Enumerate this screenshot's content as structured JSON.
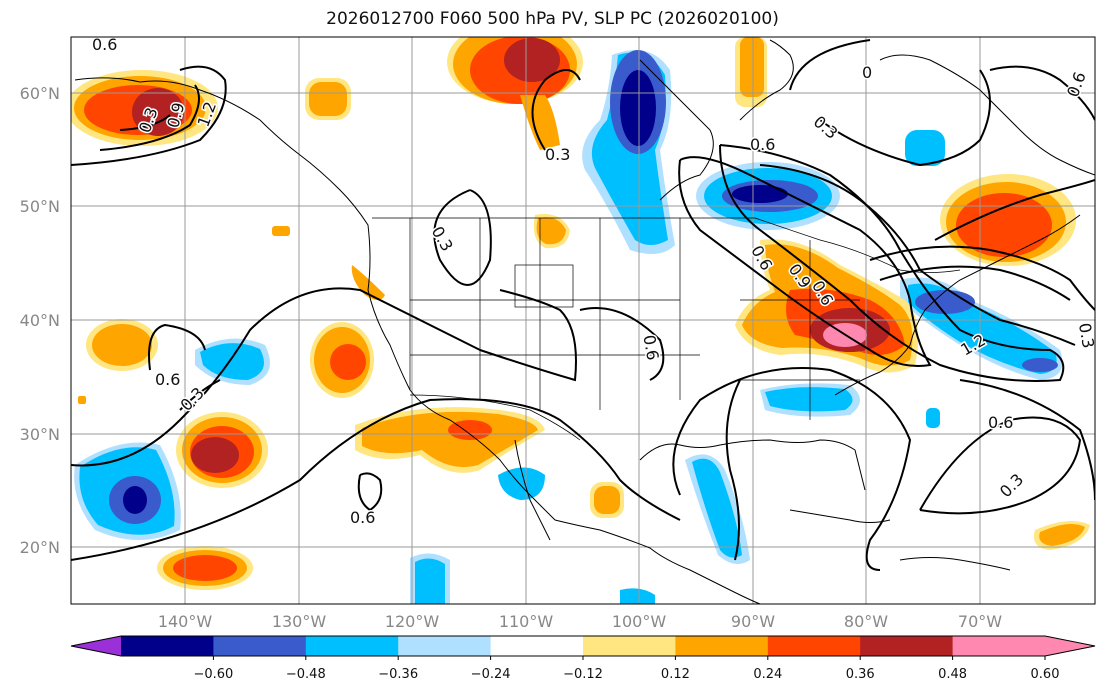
{
  "title": "2026012700 F060 500 hPa PV, SLP PC (2026020100)",
  "lat_labels": [
    "60°N",
    "50°N",
    "40°N",
    "30°N",
    "20°N"
  ],
  "lon_labels": [
    "140°W",
    "130°W",
    "120°W",
    "110°W",
    "100°W",
    "90°W",
    "80°W",
    "70°W"
  ],
  "colorbar": {
    "tick_labels": [
      "−0.60",
      "−0.48",
      "−0.36",
      "−0.24",
      "−0.12",
      "0.12",
      "0.24",
      "0.36",
      "0.48",
      "0.60"
    ],
    "colors": [
      "#9b30d9",
      "#00008b",
      "#3a5bcc",
      "#00bfff",
      "#b0e0ff",
      "#ffffff",
      "#ffe680",
      "#ffa500",
      "#ff4500",
      "#b22222",
      "#ff88b0",
      "#ff88b0"
    ]
  },
  "contour_labels": [
    "0.6",
    "0.3",
    "0.9",
    "1.2",
    "0",
    "0.6",
    "0.3",
    "0.6",
    "0.3",
    "0.6",
    "0.6",
    "0.6",
    "0.3",
    "0.6",
    "0.3",
    "0.3",
    "1.2",
    "0.3",
    "0.6",
    "0.9",
    "0.6"
  ],
  "colors": {
    "shade_dark_red": "#b22222",
    "shade_red": "#ff4500",
    "shade_orange": "#ffa500",
    "shade_yellow": "#ffe680",
    "shade_pink": "#ff88b0",
    "shade_light_blue": "#b0e0ff",
    "shade_blue": "#00bfff",
    "shade_mid_blue": "#3a5bcc",
    "shade_navy": "#00008b"
  }
}
